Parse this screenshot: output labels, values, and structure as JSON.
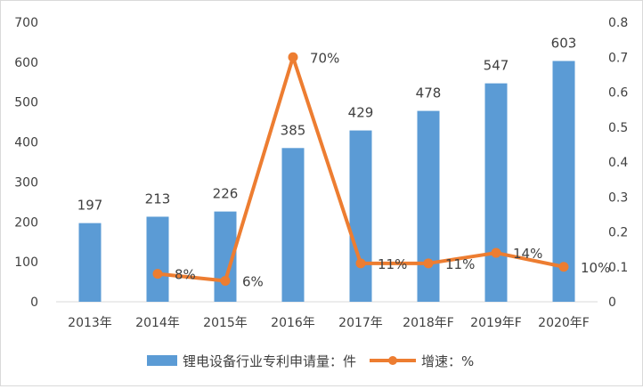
{
  "chart_data": {
    "type": "bar+line",
    "title": "",
    "categories": [
      "2013年",
      "2014年",
      "2015年",
      "2016年",
      "2017年",
      "2018年F",
      "2019年F",
      "2020年F"
    ],
    "series": [
      {
        "name": "锂电设备行业专利申请量：件",
        "type": "bar",
        "axis": "left",
        "color": "#5b9bd5",
        "values": [
          197,
          213,
          226,
          385,
          429,
          478,
          547,
          603
        ],
        "labels": [
          "197",
          "213",
          "226",
          "385",
          "429",
          "478",
          "547",
          "603"
        ]
      },
      {
        "name": "增速：%",
        "type": "line",
        "axis": "right",
        "color": "#ed7d31",
        "values": [
          null,
          0.08,
          0.06,
          0.7,
          0.11,
          0.11,
          0.14,
          0.1
        ],
        "labels": [
          "",
          "8%",
          "6%",
          "70%",
          "11%",
          "11%",
          "14%",
          "10%"
        ]
      }
    ],
    "y_left": {
      "min": 0,
      "max": 700,
      "step": 100,
      "ticks": [
        "0",
        "100",
        "200",
        "300",
        "400",
        "500",
        "600",
        "700"
      ]
    },
    "y_right": {
      "min": 0,
      "max": 0.8,
      "step": 0.1,
      "ticks": [
        "0",
        "0.1",
        "0.2",
        "0.3",
        "0.4",
        "0.5",
        "0.6",
        "0.7",
        "0.8"
      ]
    },
    "grid": false,
    "legend": "bottom"
  }
}
